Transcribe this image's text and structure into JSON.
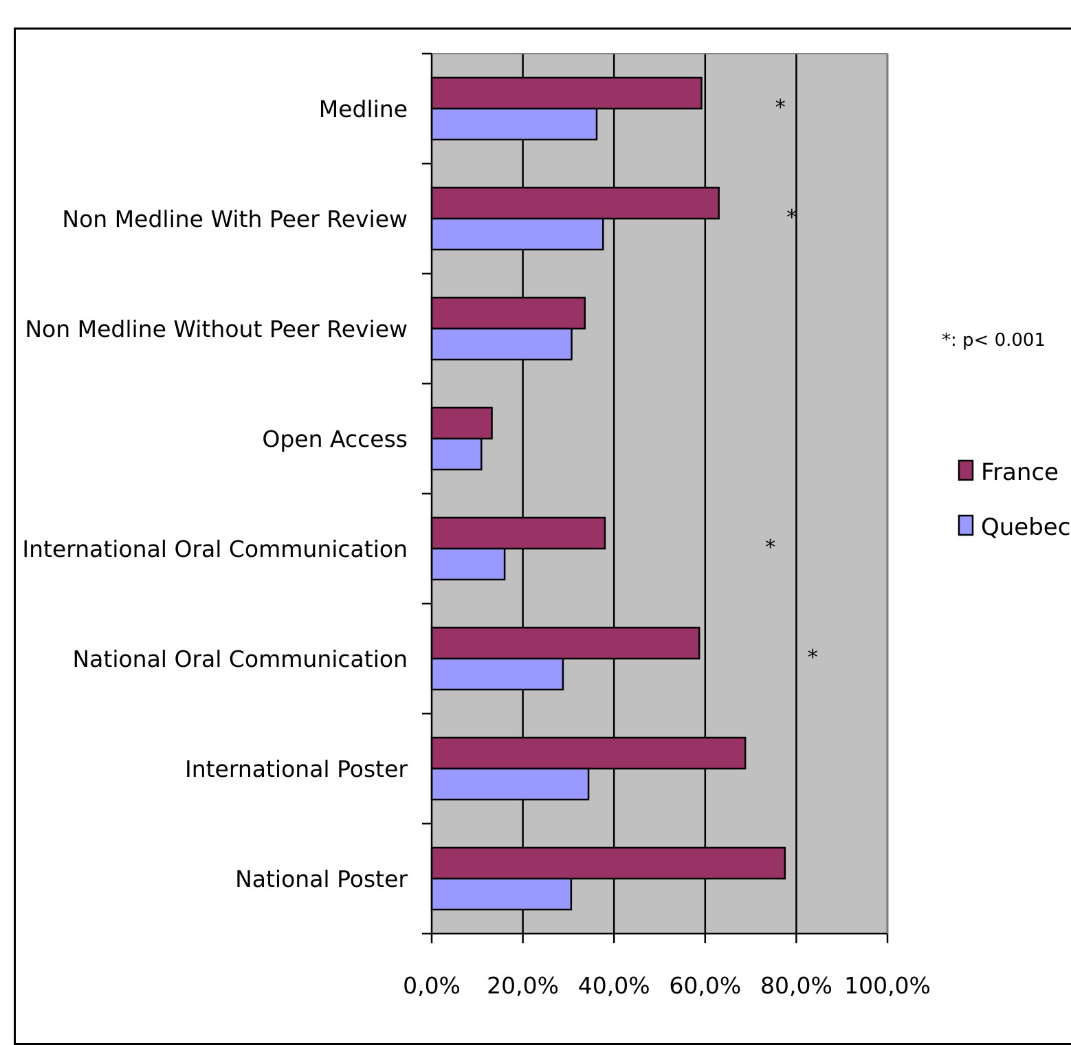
{
  "chart_data": {
    "type": "bar",
    "orientation": "horizontal",
    "categories": [
      "Medline",
      "Non Medline With Peer Review",
      "Non Medline Without Peer Review",
      "Open Access",
      "International Oral Communication",
      "National Oral Communication",
      "International Poster",
      "National Poster"
    ],
    "series": [
      {
        "name": "France",
        "color": "#993366",
        "values": [
          59.2,
          63.0,
          33.6,
          13.2,
          38.0,
          58.7,
          68.8,
          77.5
        ]
      },
      {
        "name": "Quebec",
        "color": "#9999ff",
        "values": [
          36.2,
          37.6,
          30.7,
          10.9,
          16.0,
          28.8,
          34.4,
          30.6
        ]
      }
    ],
    "xlim": [
      0,
      100
    ],
    "x_ticks": [
      "0,0%",
      "20,0%",
      "40,0%",
      "60,0%",
      "80,0%",
      "100,0%"
    ],
    "x_tick_values": [
      0,
      20,
      40,
      60,
      80,
      100
    ],
    "grid": "vertical",
    "plot_background": "#c0c0c0",
    "legend_position": "right",
    "significance_markers": [
      {
        "category": "Medline",
        "label": "*",
        "x": 76.5
      },
      {
        "category": "Non Medline With Peer Review",
        "label": "*",
        "x": 79.0
      },
      {
        "category": "International Oral Communication",
        "label": "*",
        "x": 74.3
      },
      {
        "category": "National Oral Communication",
        "label": "*",
        "x": 83.6
      }
    ],
    "note": "*: p< 0.001",
    "title": "",
    "xlabel": "",
    "ylabel": ""
  }
}
